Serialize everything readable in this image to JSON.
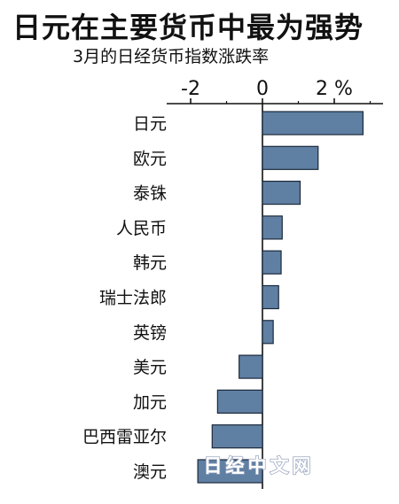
{
  "chart_data": {
    "type": "bar",
    "orientation": "horizontal",
    "title": "日元在主要货币中最为强势",
    "subtitle": "3月的日经货币指数涨跌率",
    "unit": "%",
    "xlim": [
      -2.5,
      3.1
    ],
    "ticks": [
      -2,
      0,
      2
    ],
    "tick_labels": [
      "-2",
      "0",
      "2 %"
    ],
    "categories": [
      "日元",
      "欧元",
      "泰铢",
      "人民币",
      "韩元",
      "瑞士法郎",
      "英镑",
      "美元",
      "加元",
      "巴西雷亚尔",
      "澳元"
    ],
    "values": [
      2.8,
      1.55,
      1.05,
      0.55,
      0.52,
      0.45,
      0.3,
      -0.65,
      -1.25,
      -1.4,
      -1.8
    ],
    "bar_color": "#5f7fa3",
    "bar_edge_color": "#1c2a3a",
    "grid": false
  },
  "watermark": "日经中文网"
}
